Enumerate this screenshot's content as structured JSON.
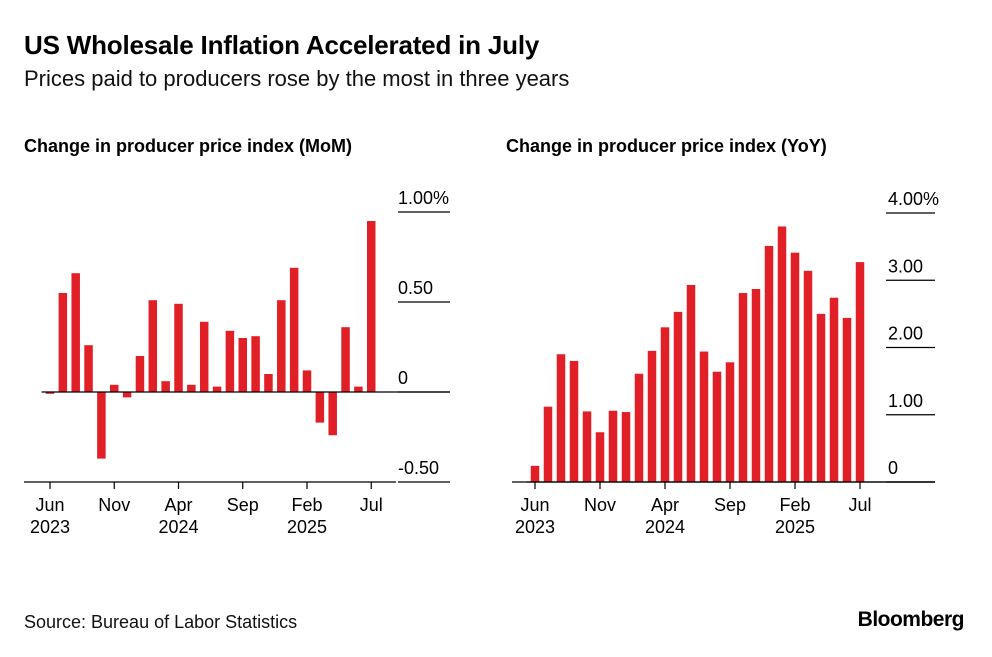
{
  "header": {
    "title": "US Wholesale Inflation Accelerated in July",
    "subtitle": "Prices paid to producers rose by the most in three years"
  },
  "footer": {
    "source": "Source: Bureau of Labor Statistics",
    "brand": "Bloomberg"
  },
  "colors": {
    "bar": "#e11f26",
    "axis": "#000000",
    "text": "#000000"
  },
  "chart_data": [
    {
      "type": "bar",
      "title": "Change in producer price index (MoM)",
      "xlabel": "",
      "ylabel": "",
      "ylim": [
        -0.5,
        1.0
      ],
      "grid": false,
      "y_axis_side": "right",
      "y_ticks": [
        1.0,
        0.5,
        0,
        -0.5
      ],
      "y_tick_labels": [
        "1.00%",
        "0.50",
        "0",
        "-0.50"
      ],
      "x_tick_labels": [
        {
          "index": 0,
          "month": "Jun",
          "year": "2023"
        },
        {
          "index": 5,
          "month": "Nov",
          "year": ""
        },
        {
          "index": 10,
          "month": "Apr",
          "year": "2024"
        },
        {
          "index": 15,
          "month": "Sep",
          "year": ""
        },
        {
          "index": 20,
          "month": "Feb",
          "year": "2025"
        },
        {
          "index": 25,
          "month": "Jul",
          "year": ""
        }
      ],
      "categories": [
        "Jun 2023",
        "Jul 2023",
        "Aug 2023",
        "Sep 2023",
        "Oct 2023",
        "Nov 2023",
        "Dec 2023",
        "Jan 2024",
        "Feb 2024",
        "Mar 2024",
        "Apr 2024",
        "May 2024",
        "Jun 2024",
        "Jul 2024",
        "Aug 2024",
        "Sep 2024",
        "Oct 2024",
        "Nov 2024",
        "Dec 2024",
        "Jan 2025",
        "Feb 2025",
        "Mar 2025",
        "Apr 2025",
        "May 2025",
        "Jun 2025",
        "Jul 2025"
      ],
      "values": [
        -0.01,
        0.55,
        0.66,
        0.26,
        -0.37,
        0.04,
        -0.03,
        0.2,
        0.51,
        0.06,
        0.49,
        0.04,
        0.39,
        0.03,
        0.34,
        0.3,
        0.31,
        0.1,
        0.51,
        0.69,
        0.12,
        -0.17,
        -0.24,
        0.36,
        0.03,
        0.95
      ]
    },
    {
      "type": "bar",
      "title": "Change in producer price index (YoY)",
      "xlabel": "",
      "ylabel": "",
      "ylim": [
        0,
        4.0
      ],
      "grid": false,
      "y_axis_side": "right",
      "y_ticks": [
        4.0,
        3.0,
        2.0,
        1.0,
        0
      ],
      "y_tick_labels": [
        "4.00%",
        "3.00",
        "2.00",
        "1.00",
        "0"
      ],
      "x_tick_labels": [
        {
          "index": 0,
          "month": "Jun",
          "year": "2023"
        },
        {
          "index": 5,
          "month": "Nov",
          "year": ""
        },
        {
          "index": 10,
          "month": "Apr",
          "year": "2024"
        },
        {
          "index": 15,
          "month": "Sep",
          "year": ""
        },
        {
          "index": 20,
          "month": "Feb",
          "year": "2025"
        },
        {
          "index": 25,
          "month": "Jul",
          "year": ""
        }
      ],
      "categories": [
        "Jun 2023",
        "Jul 2023",
        "Aug 2023",
        "Sep 2023",
        "Oct 2023",
        "Nov 2023",
        "Dec 2023",
        "Jan 2024",
        "Feb 2024",
        "Mar 2024",
        "Apr 2024",
        "May 2024",
        "Jun 2024",
        "Jul 2024",
        "Aug 2024",
        "Sep 2024",
        "Oct 2024",
        "Nov 2024",
        "Dec 2024",
        "Jan 2025",
        "Feb 2025",
        "Mar 2025",
        "Apr 2025",
        "May 2025",
        "Jun 2025",
        "Jul 2025"
      ],
      "values": [
        0.24,
        1.12,
        1.9,
        1.8,
        1.05,
        0.74,
        1.06,
        1.04,
        1.61,
        1.95,
        2.3,
        2.53,
        2.93,
        1.94,
        1.64,
        1.78,
        2.81,
        2.87,
        3.51,
        3.8,
        3.41,
        3.14,
        2.5,
        2.74,
        2.44,
        3.27
      ]
    }
  ]
}
